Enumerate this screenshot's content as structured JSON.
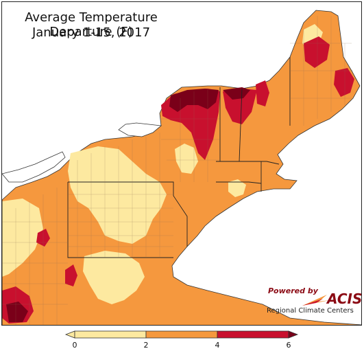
{
  "title": {
    "line1": "Average Temperature Departure (F)",
    "line2": "January 1-15, 2017"
  },
  "logo": {
    "powered_by": "Powered by",
    "brand": "ACIS",
    "subtitle": "Regional Climate Centers"
  },
  "legend": {
    "ticks": [
      "0",
      "2",
      "4",
      "6"
    ],
    "bins": [
      {
        "range": "0-2",
        "color": "#fde9a0"
      },
      {
        "range": "2-4",
        "color": "#f5983e"
      },
      {
        "range": "4-6",
        "color": "#c8102e"
      }
    ],
    "below_min_color": "#fde9a0",
    "above_max_color": "#7a0019"
  },
  "colors": {
    "bin_0_2": "#fde9a0",
    "bin_2_4": "#f5983e",
    "bin_4_6": "#c8102e",
    "bin_6_plus": "#7a0019",
    "water": "#ffffff",
    "border": "#333333"
  }
}
